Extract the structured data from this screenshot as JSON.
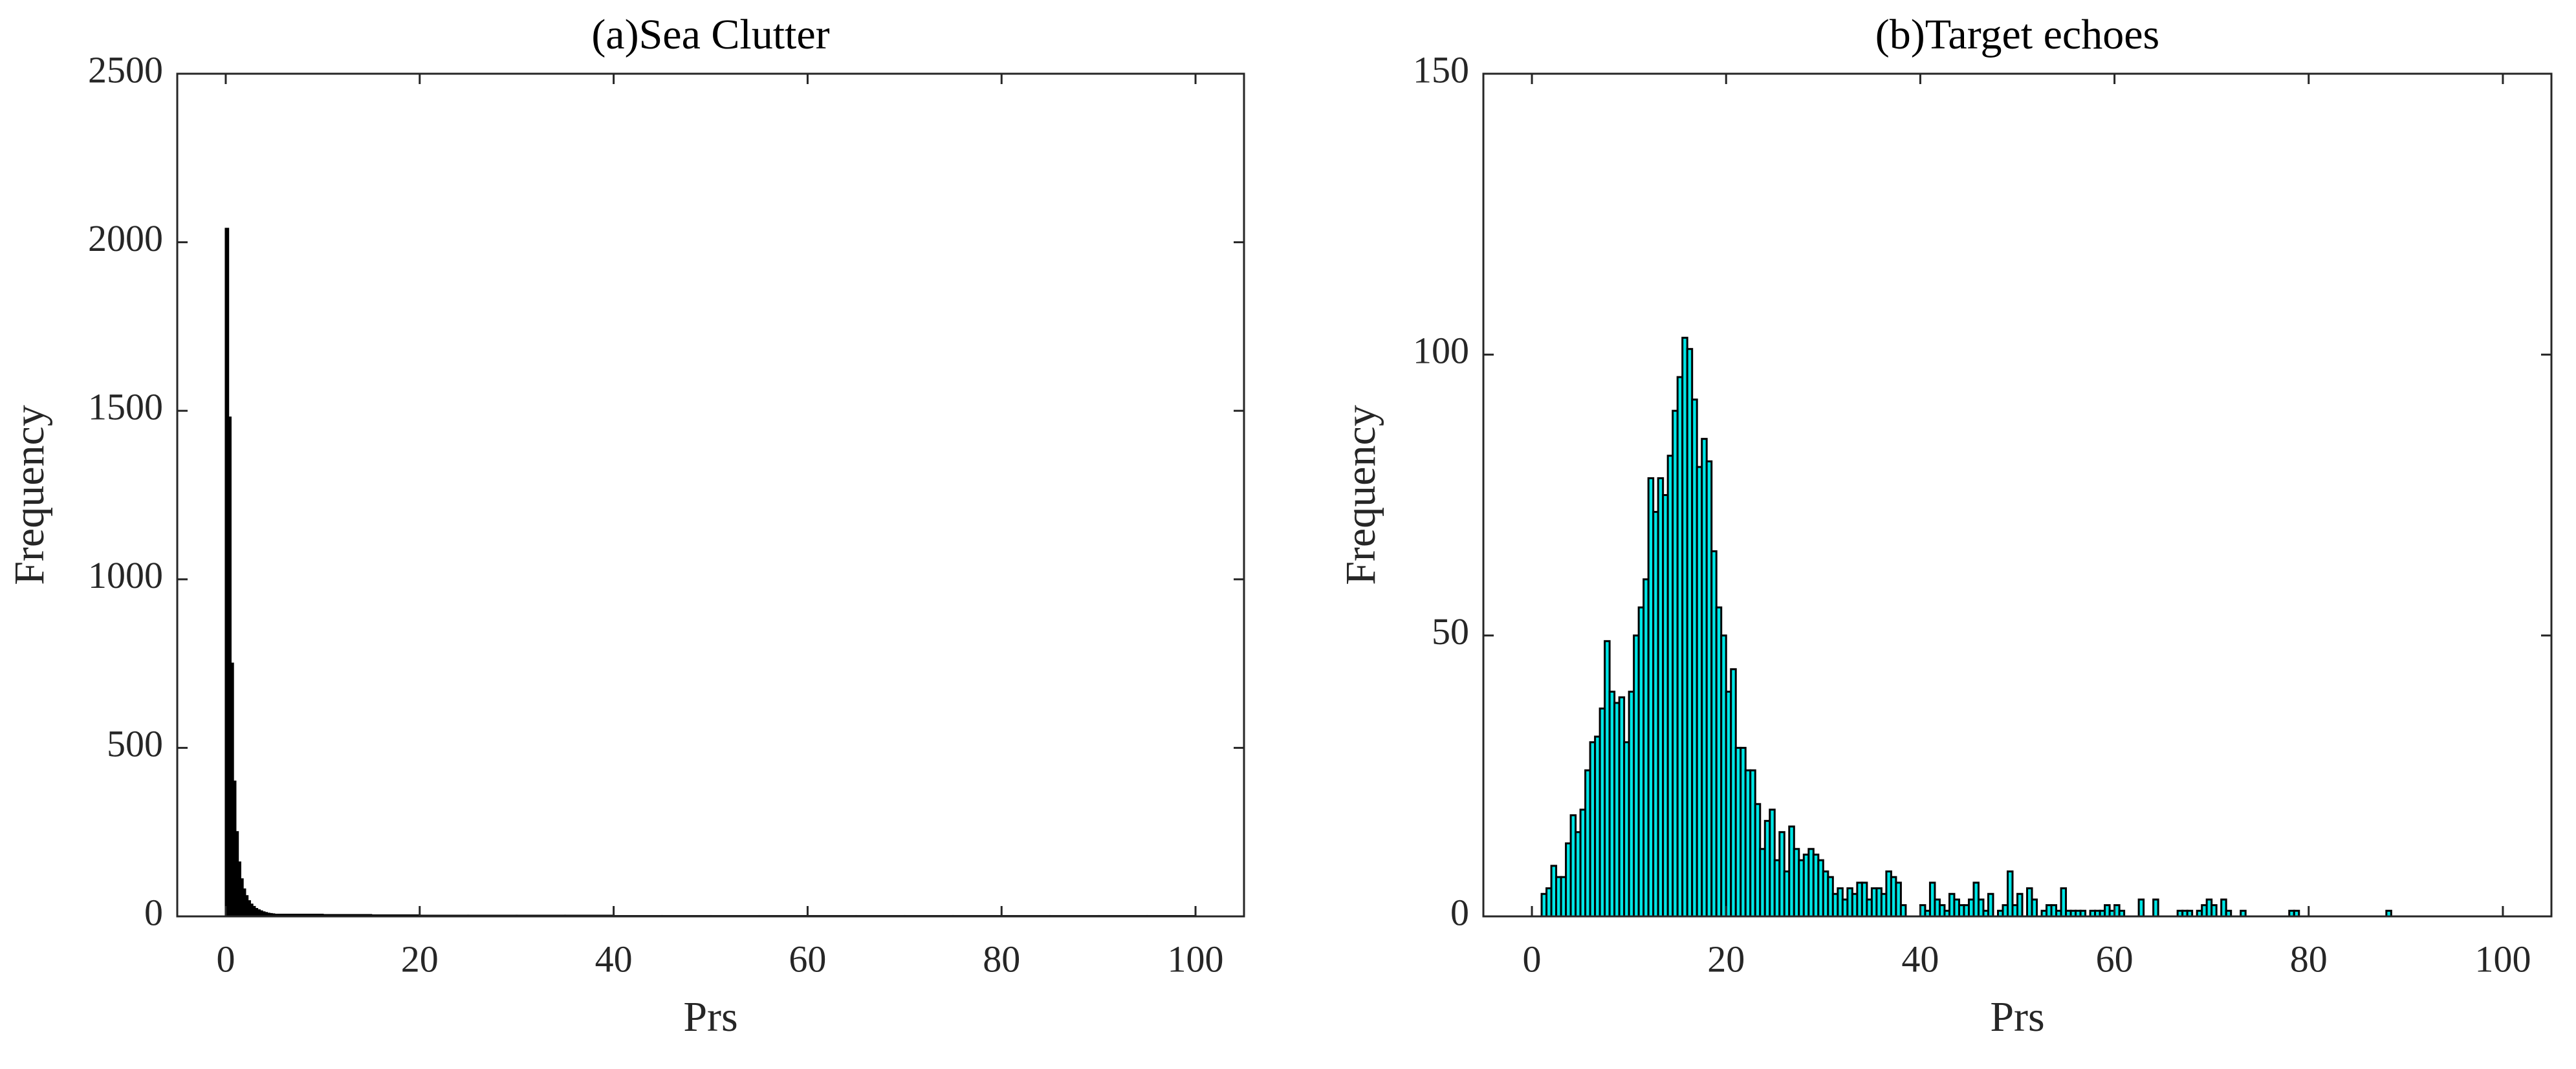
{
  "chart_data": [
    {
      "type": "histogram",
      "title": "(a)Sea Clutter",
      "xlabel": "Prs",
      "ylabel": "Frequency",
      "bins": [
        0,
        0.25,
        0.5,
        0.75,
        1,
        1.25,
        1.5,
        1.75,
        2,
        2.25,
        2.5,
        2.75,
        3,
        3.25,
        3.5,
        3.75,
        4,
        4.25,
        4.5,
        4.75,
        5,
        10,
        15,
        20,
        25,
        30,
        35,
        40,
        45,
        50,
        55,
        60,
        65,
        70,
        75,
        80,
        85,
        90,
        95,
        100
      ],
      "values": [
        2040,
        1480,
        750,
        400,
        250,
        160,
        110,
        80,
        60,
        45,
        35,
        28,
        22,
        18,
        15,
        12,
        10,
        8,
        7,
        6,
        5,
        4,
        3,
        2,
        2,
        2,
        2,
        1,
        1,
        1,
        1,
        1,
        1,
        1,
        1,
        1,
        1,
        1,
        1
      ],
      "color": "#000000",
      "edgecolor": "#000000",
      "xlim": [
        -5,
        105
      ],
      "ylim": [
        0,
        2500
      ],
      "xticks": [
        0,
        20,
        40,
        60,
        80,
        100
      ],
      "yticks": [
        0,
        500,
        1000,
        1500,
        2000,
        2500
      ]
    },
    {
      "type": "histogram",
      "title": "(b)Target echoes",
      "xlabel": "Prs",
      "ylabel": "Frequency",
      "bins": [
        1,
        1.5,
        2,
        2.5,
        3,
        3.5,
        4,
        4.5,
        5,
        5.5,
        6,
        6.5,
        7,
        7.5,
        8,
        8.5,
        9,
        9.5,
        10,
        10.5,
        11,
        11.5,
        12,
        12.5,
        13,
        13.5,
        14,
        14.5,
        15,
        15.5,
        16,
        16.5,
        17,
        17.5,
        18,
        18.5,
        19,
        19.5,
        20,
        20.5,
        21,
        21.5,
        22,
        22.5,
        23,
        23.5,
        24,
        24.5,
        25,
        25.5,
        26,
        26.5,
        27,
        27.5,
        28,
        28.5,
        29,
        29.5,
        30,
        30.5,
        31,
        31.5,
        32,
        32.5,
        33,
        33.5,
        34,
        34.5,
        35,
        35.5,
        36,
        36.5,
        37,
        37.5,
        38,
        38.5,
        39,
        39.5,
        40,
        40.5,
        41,
        41.5,
        42,
        42.5,
        43,
        43.5,
        44,
        44.5,
        45,
        45.5,
        46,
        46.5,
        47,
        47.5,
        48,
        48.5,
        49,
        49.5,
        50,
        50.5,
        51,
        51.5,
        52,
        52.5,
        53,
        53.5,
        54,
        54.5,
        55,
        55.5,
        56,
        56.5,
        57,
        57.5,
        58,
        58.5,
        59,
        59.5,
        60,
        60.5,
        61,
        61.5,
        62,
        62.5,
        63,
        63.5,
        64,
        64.5,
        65,
        65.5,
        66,
        66.5,
        67,
        67.5,
        68,
        68.5,
        69,
        69.5,
        70,
        70.5,
        71,
        71.5,
        72,
        72.5,
        73,
        73.5,
        74,
        74.5,
        75,
        75.5,
        76,
        76.5,
        77,
        77.5,
        78,
        78.5,
        79,
        79.5,
        80,
        80.5,
        81,
        81.5,
        82,
        82.5,
        83,
        83.5,
        84,
        84.5,
        85,
        85.5,
        86,
        86.5,
        87,
        87.5,
        88,
        88.5
      ],
      "values": [
        4,
        5,
        9,
        7,
        7,
        13,
        18,
        15,
        19,
        26,
        31,
        32,
        37,
        49,
        40,
        38,
        39,
        31,
        40,
        50,
        55,
        60,
        78,
        72,
        78,
        75,
        82,
        90,
        96,
        103,
        101,
        92,
        80,
        85,
        81,
        65,
        55,
        50,
        40,
        44,
        30,
        30,
        26,
        26,
        20,
        12,
        17,
        19,
        10,
        15,
        8,
        16,
        12,
        10,
        11,
        12,
        11,
        10,
        8,
        7,
        4,
        5,
        3,
        5,
        4,
        6,
        6,
        3,
        5,
        5,
        4,
        8,
        7,
        6,
        2,
        0,
        0,
        0,
        2,
        1,
        6,
        3,
        2,
        1,
        4,
        3,
        2,
        2,
        3,
        6,
        3,
        1,
        4,
        0,
        1,
        2,
        8,
        2,
        4,
        0,
        5,
        3,
        0,
        1,
        2,
        2,
        1,
        5,
        1,
        1,
        1,
        1,
        0,
        1,
        1,
        1,
        2,
        1,
        2,
        1,
        0,
        0,
        0,
        3,
        0,
        0,
        3,
        0,
        0,
        0,
        0,
        1,
        1,
        1,
        0,
        1,
        2,
        3,
        2,
        0,
        3,
        1,
        0,
        0,
        1,
        0,
        0,
        0,
        0,
        0,
        0,
        0,
        0,
        0,
        1,
        1,
        0,
        0,
        0,
        0,
        0,
        0,
        0,
        0,
        0,
        0,
        0,
        0,
        0,
        0,
        0,
        0,
        0,
        0,
        1
      ],
      "color": "#00e5e5",
      "edgecolor": "#000000",
      "xlim": [
        -5,
        105
      ],
      "ylim": [
        0,
        150
      ],
      "xticks": [
        0,
        20,
        40,
        60,
        80,
        100
      ],
      "yticks": [
        0,
        50,
        100,
        150
      ]
    }
  ]
}
